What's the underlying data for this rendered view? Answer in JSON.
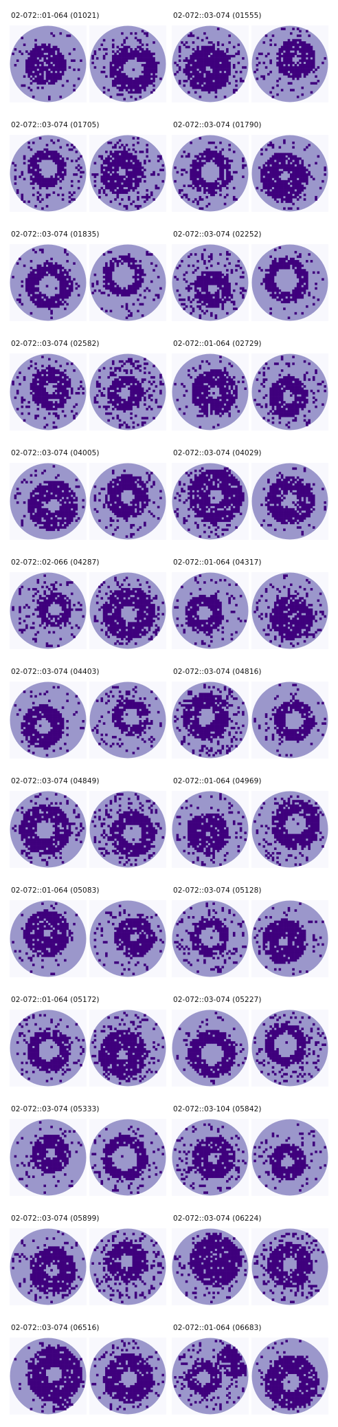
{
  "colors": {
    "background_square": "#f8f8fd",
    "pass_die": "#9b97cb",
    "fail_die": "#3f007d"
  },
  "panels": [
    {
      "title": "02-072::01-064 (01021)"
    },
    {
      "title": "02-072::03-074 (01555)"
    },
    {
      "title": "02-072::03-074 (01705)"
    },
    {
      "title": "02-072::03-074 (01790)"
    },
    {
      "title": "02-072::03-074 (01835)"
    },
    {
      "title": "02-072::03-074 (02252)"
    },
    {
      "title": "02-072::03-074 (02582)"
    },
    {
      "title": "02-072::01-064 (02729)"
    },
    {
      "title": "02-072::03-074 (04005)"
    },
    {
      "title": "02-072::03-074 (04029)"
    },
    {
      "title": "02-072::02-066 (04287)"
    },
    {
      "title": "02-072::01-064 (04317)"
    },
    {
      "title": "02-072::03-074 (04403)"
    },
    {
      "title": "02-072::03-074 (04816)"
    },
    {
      "title": "02-072::03-074 (04849)"
    },
    {
      "title": "02-072::01-064 (04969)"
    },
    {
      "title": "02-072::01-064 (05083)"
    },
    {
      "title": "02-072::03-074 (05128)"
    },
    {
      "title": "02-072::01-064 (05172)"
    },
    {
      "title": "02-072::03-074 (05227)"
    },
    {
      "title": "02-072::03-074 (05333)"
    },
    {
      "title": "02-072::03-104 (05842)"
    },
    {
      "title": "02-072::03-074 (05899)"
    },
    {
      "title": "02-072::03-074 (06224)"
    },
    {
      "title": "02-072::03-074 (06516)"
    },
    {
      "title": "02-072::01-064 (06683)"
    }
  ]
}
